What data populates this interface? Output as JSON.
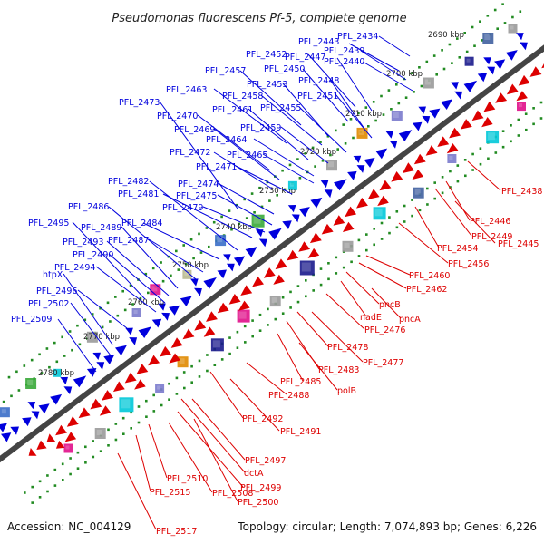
{
  "title": "Pseudomonas fluorescens Pf-5, complete genome",
  "footer": {
    "accession": "Accession: NC_004129",
    "summary": "Topology: circular; Length: 7,074,893 bp; Genes: 6,226"
  },
  "colors": {
    "forward": "#0000dd",
    "reverse": "#dd0000",
    "backbone": "#555555",
    "tick": "#228B22"
  },
  "scale_ticks": [
    "2690 kbp",
    "2700 kbp",
    "2710 kbp",
    "2720 kbp",
    "2730 kbp",
    "2740 kbp",
    "2750 kbp",
    "2760 kbp",
    "2770 kbp",
    "2780 kbp"
  ],
  "forward_genes": [
    "PFL_2434",
    "PFL_2443",
    "PFL_2439",
    "PFL_2440",
    "PFL_2452",
    "PFL_2447",
    "PFL_2457",
    "PFL_2450",
    "PFL_2448",
    "PFL_2463",
    "PFL_2453",
    "PFL_2458",
    "PFL_2451",
    "PFL_2473",
    "PFL_2461",
    "PFL_2455",
    "PFL_2470",
    "PFL_2469",
    "PFL_2459",
    "PFL_2464",
    "PFL_2472",
    "PFL_2465",
    "PFL_2471",
    "PFL_2482",
    "PFL_2474",
    "PFL_2481",
    "PFL_2475",
    "PFL_2486",
    "PFL_2479",
    "PFL_2495",
    "PFL_2489",
    "PFL_2484",
    "PFL_2493",
    "PFL_2487",
    "PFL_2490",
    "PFL_2494",
    "htpX",
    "PFL_2496",
    "PFL_2502",
    "PFL_2509"
  ],
  "reverse_genes": [
    "PFL_2438",
    "PFL_2446",
    "PFL_2449",
    "PFL_2445",
    "PFL_2454",
    "PFL_2456",
    "PFL_2460",
    "PFL_2462",
    "pncB",
    "nadE",
    "pncA",
    "PFL_2476",
    "PFL_2478",
    "PFL_2477",
    "PFL_2483",
    "PFL_2485",
    "polB",
    "PFL_2488",
    "PFL_2492",
    "PFL_2491",
    "PFL_2497",
    "PFL_2510",
    "dctA",
    "PFL_2499",
    "PFL_2515",
    "PFL_2508",
    "PFL_2500",
    "PFL_2517"
  ]
}
